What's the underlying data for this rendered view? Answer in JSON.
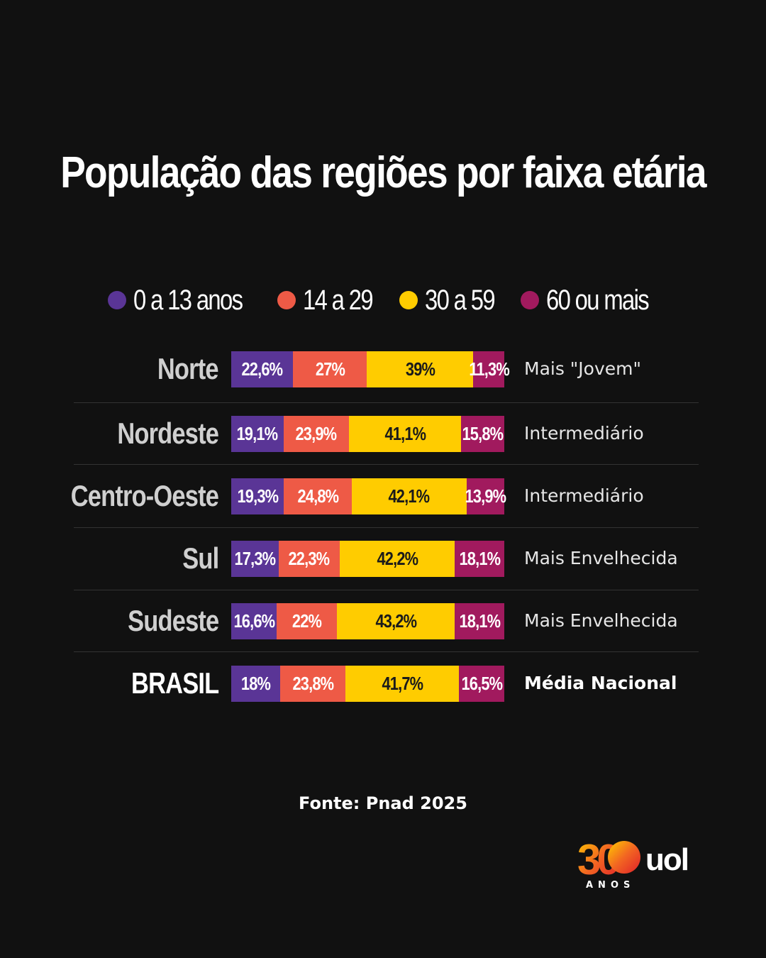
{
  "chart_data": {
    "type": "bar",
    "stacked": true,
    "orientation": "horizontal",
    "title": "População das regiões por faixa etária",
    "categories": [
      "Norte",
      "Nordeste",
      "Centro-Oeste",
      "Sul",
      "Sudeste",
      "BRASIL"
    ],
    "descriptions": [
      "Mais \"Jovem\"",
      "Intermediário",
      "Intermediário",
      "Mais Envelhecida",
      "Mais Envelhecida",
      "Média Nacional"
    ],
    "series": [
      {
        "name": "0 a 13 anos",
        "color": "#5a3596",
        "values": [
          22.6,
          19.1,
          19.3,
          17.3,
          16.6,
          18.0
        ],
        "labels": [
          "22,6%",
          "19,1%",
          "19,3%",
          "17,3%",
          "16,6%",
          "18%"
        ]
      },
      {
        "name": "14 a 29",
        "color": "#ee5a46",
        "values": [
          27.0,
          23.9,
          24.8,
          22.3,
          22.0,
          23.8
        ],
        "labels": [
          "27%",
          "23,9%",
          "24,8%",
          "22,3%",
          "22%",
          "23,8%"
        ]
      },
      {
        "name": "30 a 59",
        "color": "#ffcc00",
        "values": [
          39.0,
          41.1,
          42.1,
          42.2,
          43.2,
          41.7
        ],
        "labels": [
          "39%",
          "41,1%",
          "42,1%",
          "42,2%",
          "43,2%",
          "41,7%"
        ]
      },
      {
        "name": "60 ou mais",
        "color": "#a11a5e",
        "values": [
          11.3,
          15.8,
          13.9,
          18.1,
          18.1,
          16.5
        ],
        "labels": [
          "11,3%",
          "15,8%",
          "13,9%",
          "18,1%",
          "18,1%",
          "16,5%"
        ]
      }
    ],
    "xlim": [
      0,
      100
    ],
    "grid": false,
    "legend": "top"
  },
  "source": "Fonte: Pnad 2025",
  "logo": {
    "number": "30",
    "brand": "uol",
    "caption": "ANOS"
  },
  "colors": {
    "background": "#111111",
    "text": "#ffffff"
  }
}
